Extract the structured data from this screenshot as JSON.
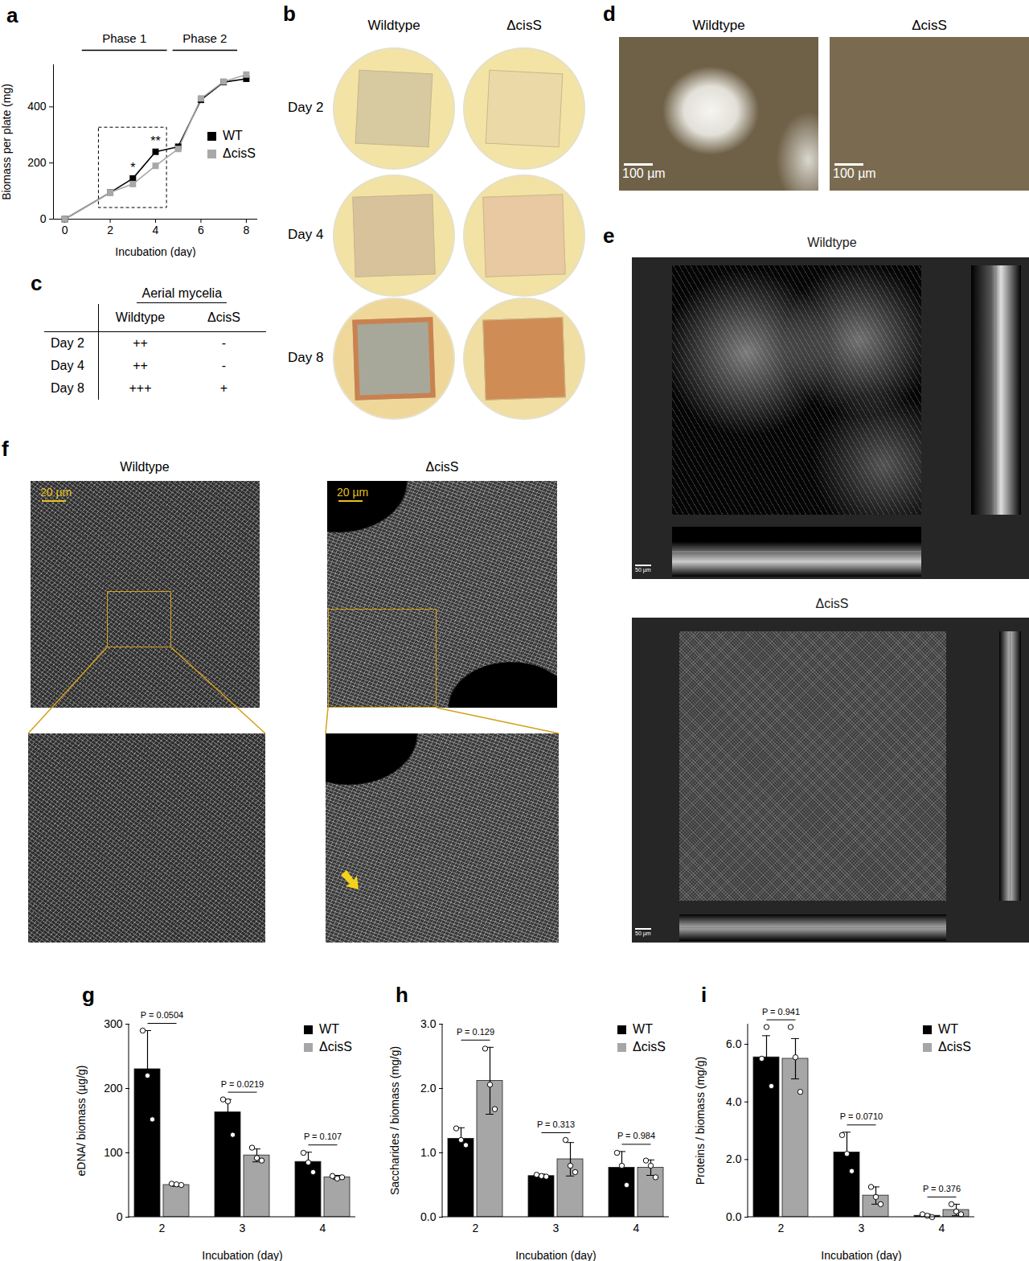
{
  "chart_data": [
    {
      "letter": "a",
      "type": "line",
      "x_label": "Incubation (day)",
      "y_label": "Biomass per plate (mg)",
      "x": [
        0,
        2,
        3,
        4,
        5,
        6,
        7,
        8
      ],
      "series": [
        {
          "name": "WT",
          "color": "#000000",
          "marker": "square",
          "values": [
            0,
            95,
            145,
            240,
            258,
            425,
            488,
            500
          ]
        },
        {
          "name": "ΔcisS",
          "color": "#a8a8a8",
          "marker": "square",
          "values": [
            0,
            95,
            125,
            190,
            250,
            430,
            490,
            515
          ]
        }
      ],
      "xlim": [
        -0.5,
        8.5
      ],
      "xticks": [
        0,
        2,
        4,
        6,
        8
      ],
      "ylim": [
        0,
        550
      ],
      "yticks": [
        0,
        200,
        400
      ],
      "annotations": [
        {
          "x": 3,
          "text": "*"
        },
        {
          "x": 4,
          "text": "**"
        }
      ],
      "phases": [
        {
          "label": "Phase 1",
          "x": [
            0.75,
            4.5
          ]
        },
        {
          "label": "Phase 2",
          "x": [
            4.75,
            7.6
          ]
        }
      ],
      "box": {
        "x": [
          1.5,
          4.5
        ],
        "y": [
          40,
          326
        ]
      },
      "legend": "right"
    },
    {
      "letter": "g",
      "type": "bar",
      "x_label": "Incubation (day)",
      "y_label": "eDNA/ biomass (µg/g)",
      "categories": [
        "2",
        "3",
        "4"
      ],
      "series": [
        {
          "name": "WT",
          "color": "#000000",
          "values": [
            230,
            163,
            86
          ],
          "errors": [
            60,
            20,
            15
          ],
          "points": [
            [
              290,
              220,
              152
            ],
            [
              183,
              180,
              128
            ],
            [
              100,
              85,
              70
            ]
          ]
        },
        {
          "name": "ΔcisS",
          "color": "#a6a6a6",
          "values": [
            50,
            96,
            62
          ],
          "errors": [
            2,
            10,
            3
          ],
          "points": [
            [
              52,
              51,
              50
            ],
            [
              108,
              92,
              88
            ],
            [
              64,
              60,
              62
            ]
          ]
        }
      ],
      "ylim": [
        0,
        300
      ],
      "yticks": [
        0,
        100,
        200,
        300
      ],
      "annotations": [
        {
          "category": "2",
          "text": "P = 0.0504"
        },
        {
          "category": "3",
          "text": "P = 0.0219"
        },
        {
          "category": "4",
          "text": "P = 0.107"
        }
      ],
      "legend": "top-right"
    },
    {
      "letter": "h",
      "type": "bar",
      "x_label": "Incubation (day)",
      "y_label": "Saccharides / biomass (mg/g)",
      "categories": [
        "2",
        "3",
        "4"
      ],
      "series": [
        {
          "name": "WT",
          "color": "#000000",
          "values": [
            1.22,
            0.64,
            0.77
          ],
          "errors": [
            0.17,
            0.03,
            0.25
          ],
          "points": [
            [
              1.38,
              1.2,
              1.12
            ],
            [
              0.66,
              0.64,
              0.63
            ],
            [
              1.0,
              0.8,
              0.5
            ]
          ]
        },
        {
          "name": "ΔcisS",
          "color": "#a6a6a6",
          "values": [
            2.12,
            0.9,
            0.77
          ],
          "errors": [
            0.52,
            0.26,
            0.12
          ],
          "points": [
            [
              2.62,
              2.06,
              1.68
            ],
            [
              1.2,
              0.8,
              0.7
            ],
            [
              0.88,
              0.8,
              0.62
            ]
          ]
        }
      ],
      "ylim": [
        0,
        3
      ],
      "yticks": [
        0,
        1,
        2,
        3
      ],
      "annotations": [
        {
          "category": "2",
          "text": "P = 0.129"
        },
        {
          "category": "3",
          "text": "P = 0.313"
        },
        {
          "category": "4",
          "text": "P = 0.984"
        }
      ],
      "legend": "top-right"
    },
    {
      "letter": "i",
      "type": "bar",
      "x_label": "Incubation (day)",
      "y_label": "Proteins / biomass (mg/g)",
      "categories": [
        "2",
        "3",
        "4"
      ],
      "series": [
        {
          "name": "WT",
          "color": "#000000",
          "values": [
            5.55,
            2.25,
            0.05
          ],
          "errors": [
            0.75,
            0.7,
            0.05
          ],
          "points": [
            [
              5.5,
              6.6,
              4.55
            ],
            [
              2.85,
              2.2,
              1.6
            ],
            [
              0.1,
              0.05,
              0.0
            ]
          ]
        },
        {
          "name": "ΔcisS",
          "color": "#a6a6a6",
          "values": [
            5.5,
            0.75,
            0.25
          ],
          "errors": [
            0.7,
            0.3,
            0.2
          ],
          "points": [
            [
              6.6,
              5.55,
              4.35
            ],
            [
              1.05,
              0.7,
              0.45
            ],
            [
              0.45,
              0.2,
              0.1
            ]
          ]
        }
      ],
      "ylim": [
        0,
        6.7
      ],
      "yticks": [
        0,
        2,
        4,
        6
      ],
      "annotations": [
        {
          "category": "2",
          "text": "P = 0.941"
        },
        {
          "category": "3",
          "text": "P = 0.0710"
        },
        {
          "category": "4",
          "text": "P = 0.376"
        }
      ],
      "legend": "top-right"
    }
  ],
  "panels": [
    {
      "letter": "b",
      "type": "plates",
      "columns": [
        "Wildtype",
        "ΔcisS"
      ],
      "rows": [
        "Day 2",
        "Day 4",
        "Day 8"
      ]
    },
    {
      "letter": "c",
      "type": "table",
      "header": "Aerial mycelia",
      "columns": [
        "Wildtype",
        "ΔcisS"
      ],
      "rows": [
        [
          "Day 2",
          "++",
          "-"
        ],
        [
          "Day 4",
          "++",
          "-"
        ],
        [
          "Day 8",
          "+++",
          "+"
        ]
      ]
    },
    {
      "letter": "d",
      "type": "micrographs",
      "labels": [
        "Wildtype",
        "ΔcisS"
      ],
      "scale_bar": "100 µm"
    },
    {
      "letter": "e",
      "type": "confocal",
      "labels": [
        "Wildtype",
        "ΔcisS"
      ],
      "scale_bar": "50 µm"
    },
    {
      "letter": "f",
      "type": "zoom",
      "labels": [
        "Wildtype",
        "ΔcisS"
      ],
      "scale_bar": "20 µm"
    }
  ]
}
